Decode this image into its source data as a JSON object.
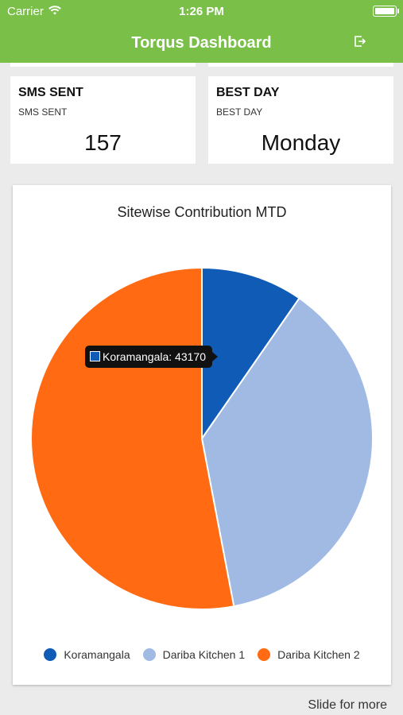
{
  "status_bar": {
    "carrier": "Carrier",
    "time": "1:26 PM"
  },
  "app": {
    "title": "Torqus Dashboard"
  },
  "cards": [
    {
      "heading": "SMS SENT",
      "sub": "SMS SENT",
      "value": "157"
    },
    {
      "heading": "BEST DAY",
      "sub": "BEST DAY",
      "value": "Monday"
    }
  ],
  "chart_data": {
    "type": "pie",
    "title": "Sitewise Contribution MTD",
    "categories": [
      "Koramangala",
      "Dariba Kitchen 1",
      "Dariba Kitchen 2"
    ],
    "values": [
      43170,
      167000,
      237000
    ],
    "colors": [
      "#0f5bb5",
      "#a0bae3",
      "#ff6a12"
    ],
    "legend": "bottom",
    "tooltip": {
      "text": "Koramangala: 43170",
      "color": "#0f5bb5"
    }
  },
  "footer": {
    "label": "Slide for more"
  }
}
